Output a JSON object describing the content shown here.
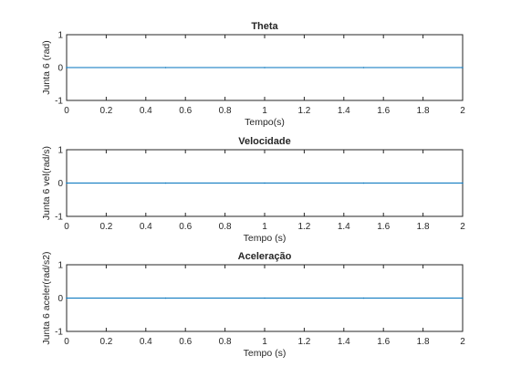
{
  "colors": {
    "background": "#ffffff",
    "axis": "#262626",
    "line": "#0072bd"
  },
  "chart_data": [
    {
      "type": "line",
      "title": "Theta",
      "xlabel": "Tempo(s)",
      "ylabel": "Junta 6  (rad)",
      "xlim": [
        0,
        2
      ],
      "ylim": [
        -1,
        1
      ],
      "xticks": [
        "0",
        "0.2",
        "0.4",
        "0.6",
        "0.8",
        "1",
        "1.2",
        "1.4",
        "1.6",
        "1.8",
        "2"
      ],
      "yticks": [
        "-1",
        "0",
        "1"
      ],
      "grid": false,
      "series": [
        {
          "x": [
            0,
            0.5,
            1,
            1.5,
            2
          ],
          "y": [
            0,
            0,
            0,
            0,
            0
          ]
        }
      ]
    },
    {
      "type": "line",
      "title": "Velocidade",
      "xlabel": "Tempo (s)",
      "ylabel": "Junta 6  vel(rad/s)",
      "xlim": [
        0,
        2
      ],
      "ylim": [
        -1,
        1
      ],
      "xticks": [
        "0",
        "0.2",
        "0.4",
        "0.6",
        "0.8",
        "1",
        "1.2",
        "1.4",
        "1.6",
        "1.8",
        "2"
      ],
      "yticks": [
        "-1",
        "0",
        "1"
      ],
      "grid": false,
      "series": [
        {
          "x": [
            0,
            0.5,
            1,
            1.5,
            2
          ],
          "y": [
            0,
            0,
            0,
            0,
            0
          ]
        }
      ]
    },
    {
      "type": "line",
      "title": "Aceleração",
      "xlabel": "Tempo (s)",
      "ylabel": "Junta 6 aceler(rad/s2)",
      "xlim": [
        0,
        2
      ],
      "ylim": [
        -1,
        1
      ],
      "xticks": [
        "0",
        "0.2",
        "0.4",
        "0.6",
        "0.8",
        "1",
        "1.2",
        "1.4",
        "1.6",
        "1.8",
        "2"
      ],
      "yticks": [
        "-1",
        "0",
        "1"
      ],
      "grid": false,
      "series": [
        {
          "x": [
            0,
            0.5,
            1,
            1.5,
            2
          ],
          "y": [
            0,
            0,
            0,
            0,
            0
          ]
        }
      ]
    }
  ]
}
